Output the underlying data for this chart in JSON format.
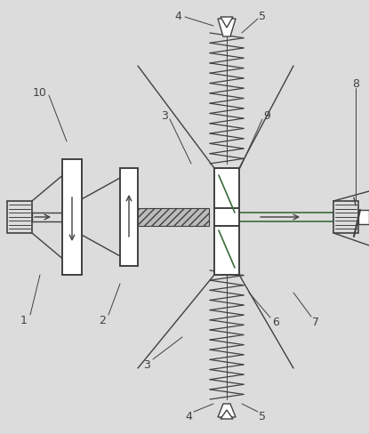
{
  "bg_color": "#dcdcdc",
  "line_color": "#404040",
  "green_color": "#3a6b3a",
  "fig_w": 4.15,
  "fig_h": 4.89,
  "dpi": 100
}
